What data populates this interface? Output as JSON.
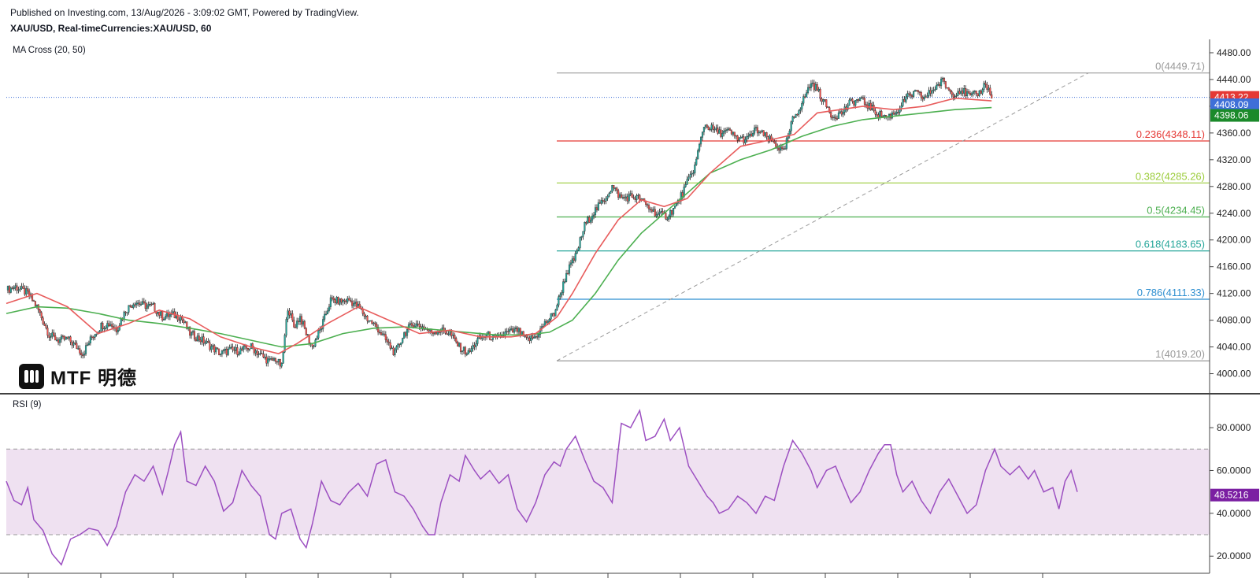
{
  "header": {
    "published": "Published on Investing.com, 13/Aug/2026 - 3:09:02 GMT, Powered by TradingView.",
    "symbol": "XAU/USD, Real-timeCurrencies:XAU/USD, 60"
  },
  "logo": {
    "text": "MTF 明德"
  },
  "colors": {
    "up": "#26a69a",
    "down": "#ef5350",
    "ma20": "#e85c5c",
    "ma50": "#4caf50",
    "rsi": "#9c4fc1",
    "rsi_band": "#efe1f1",
    "price_badge": "#e53935",
    "ma20_badge": "#3f6fd8",
    "ma50_badge": "#1b8a2a",
    "rsi_badge": "#7b1fa2"
  },
  "chart_data": [
    {
      "type": "candlestick",
      "indicator_label": "MA Cross (20, 50)",
      "y_ticks": [
        "4480.00",
        "4440.00",
        "4400.00",
        "4360.00",
        "4320.00",
        "4280.00",
        "4240.00",
        "4200.00",
        "4160.00",
        "4120.00",
        "4080.00",
        "4040.00",
        "4000.00"
      ],
      "ylim": [
        3970,
        4500
      ],
      "badges": {
        "price": "4413.22",
        "ma20": "4408.09",
        "ma50": "4398.06"
      },
      "fib_levels": [
        {
          "label": "0(4449.71)",
          "value": 4449.71,
          "color": "#999999"
        },
        {
          "label": "0.236(4348.11)",
          "value": 4348.11,
          "color": "#e53935"
        },
        {
          "label": "0.382(4285.26)",
          "value": 4285.26,
          "color": "#9ccc3c"
        },
        {
          "label": "0.5(4234.45)",
          "value": 4234.45,
          "color": "#4caf50"
        },
        {
          "label": "0.618(4183.65)",
          "value": 4183.65,
          "color": "#26a69a"
        },
        {
          "label": "0.786(4111.33)",
          "value": 4111.33,
          "color": "#2f8fd0"
        },
        {
          "label": "1(4019.20)",
          "value": 4019.2,
          "color": "#999999"
        }
      ],
      "price_path": [
        [
          0,
          4125
        ],
        [
          6,
          4130
        ],
        [
          14,
          4120
        ],
        [
          20,
          4100
        ],
        [
          28,
          4058
        ],
        [
          34,
          4050
        ],
        [
          40,
          4052
        ],
        [
          46,
          4040
        ],
        [
          50,
          4030
        ],
        [
          56,
          4055
        ],
        [
          62,
          4072
        ],
        [
          68,
          4075
        ],
        [
          72,
          4066
        ],
        [
          78,
          4095
        ],
        [
          84,
          4108
        ],
        [
          90,
          4102
        ],
        [
          96,
          4100
        ],
        [
          102,
          4085
        ],
        [
          108,
          4088
        ],
        [
          114,
          4085
        ],
        [
          120,
          4060
        ],
        [
          128,
          4050
        ],
        [
          134,
          4040
        ],
        [
          140,
          4030
        ],
        [
          146,
          4035
        ],
        [
          152,
          4034
        ],
        [
          160,
          4040
        ],
        [
          166,
          4028
        ],
        [
          172,
          4018
        ],
        [
          176,
          4022
        ],
        [
          180,
          4010
        ],
        [
          184,
          4100
        ],
        [
          188,
          4070
        ],
        [
          192,
          4085
        ],
        [
          196,
          4060
        ],
        [
          200,
          4040
        ],
        [
          206,
          4070
        ],
        [
          212,
          4110
        ],
        [
          218,
          4108
        ],
        [
          224,
          4110
        ],
        [
          230,
          4100
        ],
        [
          236,
          4082
        ],
        [
          242,
          4070
        ],
        [
          248,
          4050
        ],
        [
          254,
          4030
        ],
        [
          260,
          4060
        ],
        [
          266,
          4075
        ],
        [
          272,
          4070
        ],
        [
          278,
          4062
        ],
        [
          284,
          4065
        ],
        [
          290,
          4060
        ],
        [
          296,
          4040
        ],
        [
          302,
          4030
        ],
        [
          308,
          4050
        ],
        [
          314,
          4058
        ],
        [
          320,
          4052
        ],
        [
          326,
          4060
        ],
        [
          334,
          4065
        ],
        [
          340,
          4050
        ],
        [
          346,
          4055
        ],
        [
          352,
          4075
        ],
        [
          358,
          4090
        ],
        [
          362,
          4118
        ],
        [
          366,
          4150
        ],
        [
          372,
          4175
        ],
        [
          378,
          4222
        ],
        [
          384,
          4242
        ],
        [
          390,
          4258
        ],
        [
          396,
          4280
        ],
        [
          402,
          4262
        ],
        [
          408,
          4265
        ],
        [
          414,
          4262
        ],
        [
          420,
          4248
        ],
        [
          426,
          4238
        ],
        [
          432,
          4236
        ],
        [
          438,
          4252
        ],
        [
          444,
          4280
        ],
        [
          450,
          4310
        ],
        [
          456,
          4372
        ],
        [
          460,
          4368
        ],
        [
          466,
          4360
        ],
        [
          472,
          4362
        ],
        [
          478,
          4352
        ],
        [
          484,
          4350
        ],
        [
          490,
          4365
        ],
        [
          496,
          4355
        ],
        [
          502,
          4345
        ],
        [
          508,
          4330
        ],
        [
          514,
          4380
        ],
        [
          520,
          4405
        ],
        [
          526,
          4435
        ],
        [
          530,
          4425
        ],
        [
          534,
          4408
        ],
        [
          540,
          4385
        ],
        [
          546,
          4390
        ],
        [
          552,
          4406
        ],
        [
          558,
          4410
        ],
        [
          564,
          4400
        ],
        [
          570,
          4388
        ],
        [
          576,
          4384
        ],
        [
          582,
          4392
        ],
        [
          588,
          4412
        ],
        [
          594,
          4420
        ],
        [
          600,
          4412
        ],
        [
          606,
          4426
        ],
        [
          612,
          4438
        ],
        [
          618,
          4418
        ],
        [
          624,
          4425
        ],
        [
          630,
          4414
        ],
        [
          636,
          4420
        ],
        [
          640,
          4435
        ],
        [
          644,
          4413
        ]
      ],
      "ma20_path": [
        [
          0,
          4105
        ],
        [
          20,
          4120
        ],
        [
          40,
          4100
        ],
        [
          60,
          4060
        ],
        [
          80,
          4075
        ],
        [
          100,
          4095
        ],
        [
          120,
          4082
        ],
        [
          140,
          4055
        ],
        [
          160,
          4040
        ],
        [
          178,
          4030
        ],
        [
          190,
          4045
        ],
        [
          210,
          4075
        ],
        [
          230,
          4100
        ],
        [
          250,
          4080
        ],
        [
          270,
          4060
        ],
        [
          290,
          4065
        ],
        [
          310,
          4055
        ],
        [
          330,
          4055
        ],
        [
          346,
          4060
        ],
        [
          360,
          4085
        ],
        [
          370,
          4120
        ],
        [
          385,
          4180
        ],
        [
          400,
          4230
        ],
        [
          415,
          4260
        ],
        [
          430,
          4250
        ],
        [
          445,
          4262
        ],
        [
          460,
          4300
        ],
        [
          480,
          4340
        ],
        [
          500,
          4350
        ],
        [
          515,
          4358
        ],
        [
          530,
          4390
        ],
        [
          545,
          4395
        ],
        [
          560,
          4400
        ],
        [
          580,
          4395
        ],
        [
          600,
          4400
        ],
        [
          620,
          4412
        ],
        [
          644,
          4408
        ]
      ],
      "ma50_path": [
        [
          0,
          4090
        ],
        [
          20,
          4100
        ],
        [
          40,
          4098
        ],
        [
          60,
          4090
        ],
        [
          80,
          4080
        ],
        [
          100,
          4075
        ],
        [
          120,
          4068
        ],
        [
          140,
          4060
        ],
        [
          160,
          4050
        ],
        [
          180,
          4040
        ],
        [
          200,
          4045
        ],
        [
          220,
          4060
        ],
        [
          240,
          4068
        ],
        [
          260,
          4070
        ],
        [
          280,
          4066
        ],
        [
          300,
          4062
        ],
        [
          320,
          4058
        ],
        [
          340,
          4058
        ],
        [
          355,
          4062
        ],
        [
          370,
          4080
        ],
        [
          385,
          4120
        ],
        [
          400,
          4170
        ],
        [
          415,
          4210
        ],
        [
          430,
          4240
        ],
        [
          445,
          4270
        ],
        [
          460,
          4300
        ],
        [
          480,
          4320
        ],
        [
          500,
          4335
        ],
        [
          520,
          4355
        ],
        [
          540,
          4370
        ],
        [
          560,
          4380
        ],
        [
          580,
          4385
        ],
        [
          600,
          4390
        ],
        [
          620,
          4395
        ],
        [
          644,
          4398
        ]
      ]
    },
    {
      "type": "line",
      "indicator_label": "RSI (9)",
      "y_ticks": [
        "80.0000",
        "60.0000",
        "40.0000",
        "20.0000"
      ],
      "ylim": [
        12,
        94
      ],
      "overbought": 70,
      "oversold": 30,
      "badge": "48.5216",
      "rsi_path": [
        [
          0,
          55
        ],
        [
          5,
          46
        ],
        [
          10,
          44
        ],
        [
          14,
          52
        ],
        [
          18,
          37
        ],
        [
          24,
          32
        ],
        [
          30,
          21
        ],
        [
          36,
          16
        ],
        [
          42,
          28
        ],
        [
          48,
          30
        ],
        [
          54,
          33
        ],
        [
          60,
          32
        ],
        [
          66,
          25
        ],
        [
          72,
          34
        ],
        [
          78,
          50
        ],
        [
          84,
          58
        ],
        [
          90,
          55
        ],
        [
          96,
          62
        ],
        [
          102,
          49
        ],
        [
          106,
          60
        ],
        [
          110,
          72
        ],
        [
          114,
          78
        ],
        [
          118,
          55
        ],
        [
          124,
          53
        ],
        [
          130,
          62
        ],
        [
          136,
          55
        ],
        [
          142,
          41
        ],
        [
          148,
          45
        ],
        [
          154,
          60
        ],
        [
          160,
          53
        ],
        [
          166,
          48
        ],
        [
          172,
          30
        ],
        [
          176,
          28
        ],
        [
          180,
          40
        ],
        [
          186,
          42
        ],
        [
          192,
          28
        ],
        [
          196,
          24
        ],
        [
          200,
          35
        ],
        [
          206,
          55
        ],
        [
          212,
          46
        ],
        [
          218,
          44
        ],
        [
          224,
          50
        ],
        [
          230,
          54
        ],
        [
          236,
          48
        ],
        [
          242,
          63
        ],
        [
          248,
          65
        ],
        [
          254,
          50
        ],
        [
          260,
          48
        ],
        [
          266,
          42
        ],
        [
          272,
          34
        ],
        [
          276,
          30
        ],
        [
          280,
          30
        ],
        [
          284,
          45
        ],
        [
          290,
          58
        ],
        [
          296,
          55
        ],
        [
          300,
          67
        ],
        [
          306,
          60
        ],
        [
          310,
          56
        ],
        [
          316,
          60
        ],
        [
          322,
          54
        ],
        [
          328,
          58
        ],
        [
          334,
          42
        ],
        [
          340,
          36
        ],
        [
          346,
          45
        ],
        [
          352,
          58
        ],
        [
          358,
          64
        ],
        [
          362,
          62
        ],
        [
          366,
          70
        ],
        [
          372,
          76
        ],
        [
          378,
          65
        ],
        [
          384,
          55
        ],
        [
          390,
          52
        ],
        [
          396,
          45
        ],
        [
          402,
          82
        ],
        [
          408,
          80
        ],
        [
          414,
          88
        ],
        [
          418,
          74
        ],
        [
          424,
          76
        ],
        [
          430,
          84
        ],
        [
          434,
          74
        ],
        [
          440,
          80
        ],
        [
          446,
          62
        ],
        [
          452,
          55
        ],
        [
          458,
          48
        ],
        [
          462,
          45
        ],
        [
          466,
          40
        ],
        [
          472,
          42
        ],
        [
          478,
          48
        ],
        [
          484,
          45
        ],
        [
          490,
          40
        ],
        [
          496,
          48
        ],
        [
          502,
          46
        ],
        [
          508,
          62
        ],
        [
          514,
          74
        ],
        [
          520,
          68
        ],
        [
          526,
          60
        ],
        [
          530,
          52
        ],
        [
          536,
          60
        ],
        [
          542,
          62
        ],
        [
          546,
          55
        ],
        [
          552,
          45
        ],
        [
          558,
          50
        ],
        [
          564,
          60
        ],
        [
          570,
          68
        ],
        [
          574,
          72
        ],
        [
          578,
          72
        ],
        [
          582,
          58
        ],
        [
          586,
          50
        ],
        [
          592,
          55
        ],
        [
          598,
          46
        ],
        [
          604,
          40
        ],
        [
          610,
          50
        ],
        [
          616,
          56
        ],
        [
          622,
          48
        ],
        [
          628,
          40
        ],
        [
          634,
          44
        ],
        [
          640,
          60
        ],
        [
          646,
          70
        ],
        [
          650,
          62
        ],
        [
          656,
          58
        ],
        [
          662,
          62
        ],
        [
          668,
          56
        ],
        [
          672,
          60
        ],
        [
          678,
          50
        ],
        [
          684,
          52
        ],
        [
          688,
          42
        ],
        [
          692,
          55
        ],
        [
          696,
          60
        ],
        [
          700,
          50
        ]
      ]
    }
  ],
  "x_ticks_count": 15
}
